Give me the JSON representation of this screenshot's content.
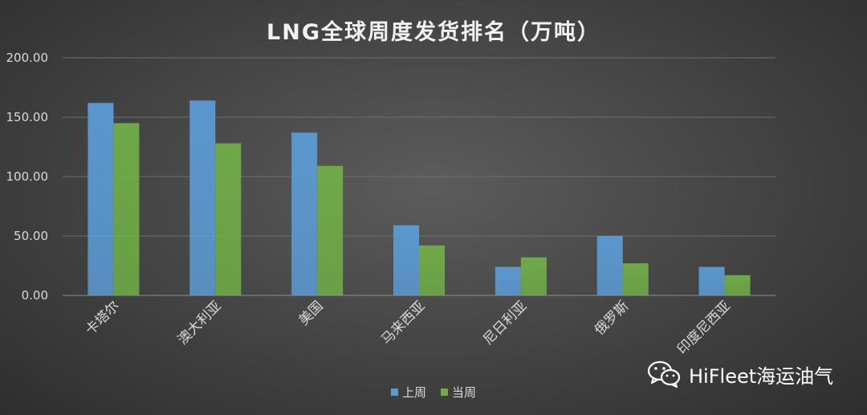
{
  "chart_data": {
    "type": "bar",
    "title": "LNG全球周度发货排名（万吨）",
    "categories": [
      "卡塔尔",
      "澳大利亚",
      "美国",
      "马来西亚",
      "尼日利亚",
      "俄罗斯",
      "印度尼西亚"
    ],
    "series": [
      {
        "name": "上周",
        "color": "#5b9bd5",
        "values": [
          162,
          164,
          137,
          59,
          24,
          50,
          24
        ]
      },
      {
        "name": "当周",
        "color": "#70ad47",
        "values": [
          145,
          128,
          109,
          42,
          32,
          27,
          17
        ]
      }
    ],
    "ylim": [
      0,
      200
    ],
    "yticks": [
      "0.00",
      "50.00",
      "100.00",
      "150.00",
      "200.00"
    ],
    "xlabel": "",
    "ylabel": "",
    "grid": true,
    "legend_position": "bottom"
  },
  "watermark": {
    "text": "HiFleet海运油气",
    "icon": "wechat-icon"
  }
}
